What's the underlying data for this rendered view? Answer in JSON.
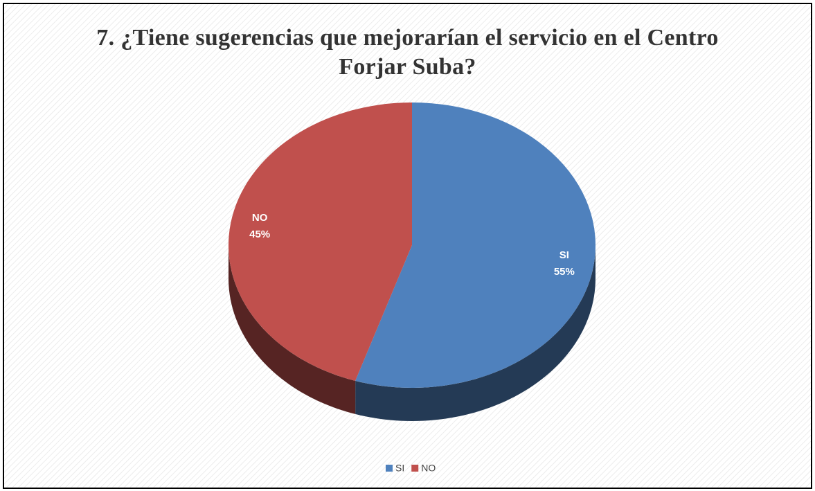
{
  "chart_data": {
    "type": "pie3d",
    "title": "7. ¿Tiene sugerencias que mejorarían el servicio en el Centro Forjar Suba?",
    "categories": [
      "SI",
      "NO"
    ],
    "values": [
      55,
      45
    ],
    "value_labels": [
      "55%",
      "45%"
    ],
    "colors": [
      "#4f81bd",
      "#c0504d"
    ],
    "legend": "bottom"
  }
}
